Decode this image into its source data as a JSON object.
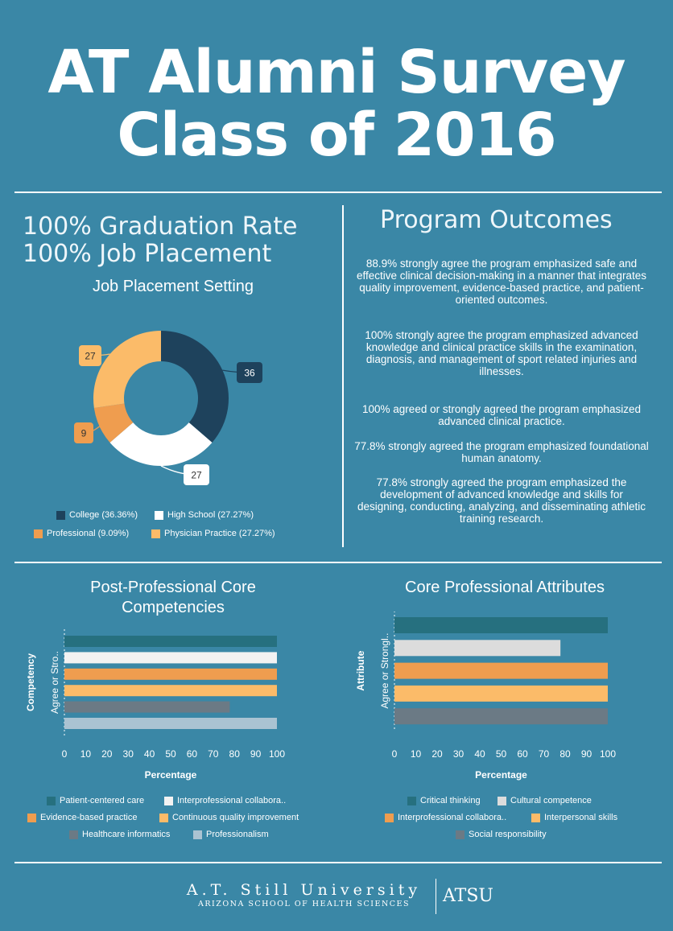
{
  "title": {
    "line1": "AT Alumni Survey",
    "line2": "Class of 2016"
  },
  "stats": {
    "graduation": "100% Graduation Rate",
    "placement": "100% Job Placement"
  },
  "outcomes": {
    "heading": "Program Outcomes",
    "items": [
      "88.9% strongly agree the program emphasized safe and effective clinical decision-making in a manner that integrates quality improvement, evidence-based practice, and patient-oriented outcomes.",
      "100% strongly agree the program emphasized advanced knowledge and clinical practice skills in the examination, diagnosis, and management of sport related injuries and illnesses.",
      "100% agreed or strongly agreed the program emphasized advanced clinical practice.",
      "77.8% strongly agreed the program emphasized foundational human anatomy.",
      "77.8% strongly agreed the program emphasized the development of advanced knowledge and skills for designing, conducting, analyzing, and disseminating athletic training research."
    ]
  },
  "chart_data": [
    {
      "type": "pie",
      "title": "Job Placement Setting",
      "donut": true,
      "categories": [
        "College",
        "High School",
        "Professional",
        "Physician Practice"
      ],
      "values": [
        36,
        27,
        9,
        27
      ],
      "labels": [
        "36",
        "27",
        "9",
        "27"
      ],
      "legend": [
        "College (36.36%)",
        "High School (27.27%)",
        "Professional (9.09%)",
        "Physician Practice (27.27%)"
      ],
      "colors": [
        "#1e425c",
        "#ffffff",
        "#ef9d4f",
        "#fbbb69"
      ]
    },
    {
      "type": "bar",
      "orientation": "horizontal",
      "title": "Post-Professional Core Competencies",
      "xlabel": "Percentage",
      "ylabel": "Competency",
      "category_label": "Agree or Stro..",
      "xlim": [
        0,
        100
      ],
      "xticks": [
        "0",
        "10",
        "20",
        "30",
        "40",
        "50",
        "60",
        "70",
        "80",
        "90",
        "100"
      ],
      "series": [
        {
          "name": "Patient-centered care",
          "values": [
            100
          ],
          "color": "#26707f"
        },
        {
          "name": "Interprofessional collabora..",
          "values": [
            100
          ],
          "color": "#f2f2f2"
        },
        {
          "name": "Evidence-based practice",
          "values": [
            100
          ],
          "color": "#ef9d4f"
        },
        {
          "name": "Continuous quality improvement",
          "values": [
            100
          ],
          "color": "#fbbb69"
        },
        {
          "name": "Healthcare informatics",
          "values": [
            77.8
          ],
          "color": "#6b7a85"
        },
        {
          "name": "Professionalism",
          "values": [
            100
          ],
          "color": "#aac3d2"
        }
      ]
    },
    {
      "type": "bar",
      "orientation": "horizontal",
      "title": "Core Professional Attributes",
      "xlabel": "Percentage",
      "ylabel": "Attribute",
      "category_label": "Agree or Strongl..",
      "xlim": [
        0,
        100
      ],
      "xticks": [
        "0",
        "10",
        "20",
        "30",
        "40",
        "50",
        "60",
        "70",
        "80",
        "90",
        "100"
      ],
      "series": [
        {
          "name": "Critical thinking",
          "values": [
            100
          ],
          "color": "#26707f"
        },
        {
          "name": "Cultural competence",
          "values": [
            77.8
          ],
          "color": "#dcdcdc"
        },
        {
          "name": "Interprofessional collabora..",
          "values": [
            100
          ],
          "color": "#ef9d4f"
        },
        {
          "name": "Interpersonal skills",
          "values": [
            100
          ],
          "color": "#fbbb69"
        },
        {
          "name": "Social responsibility",
          "values": [
            100
          ],
          "color": "#6b7a85"
        }
      ]
    }
  ],
  "footer": {
    "university": "A.T. Still University",
    "school": "Arizona School of Health Sciences",
    "abbrev": "ATSU"
  }
}
